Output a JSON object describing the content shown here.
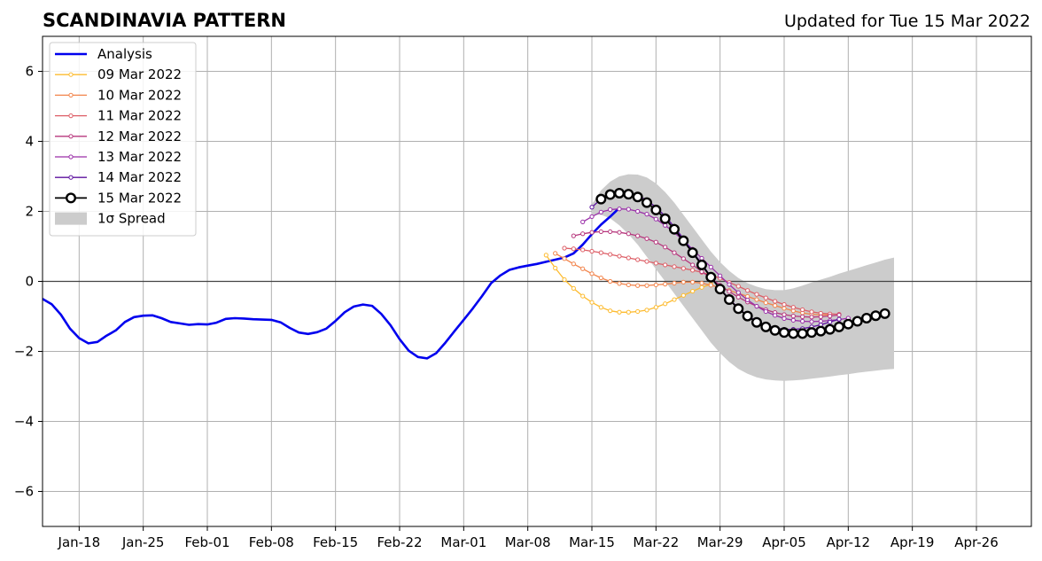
{
  "chart_data": {
    "type": "line",
    "title": "SCANDINAVIA PATTERN",
    "subtitle": "Updated for Tue 15 Mar 2022",
    "xlabel": "",
    "ylabel": "",
    "ylim": [
      -7,
      7
    ],
    "xlim": [
      "2022-01-14",
      "2022-05-02"
    ],
    "yticks": [
      -6,
      -4,
      -2,
      0,
      2,
      4,
      6
    ],
    "ytick_labels": [
      "−6",
      "−4",
      "−2",
      "0",
      "2",
      "4",
      "6"
    ],
    "xticks": [
      "2022-01-18",
      "2022-01-25",
      "2022-02-01",
      "2022-02-08",
      "2022-02-15",
      "2022-02-22",
      "2022-03-01",
      "2022-03-08",
      "2022-03-15",
      "2022-03-22",
      "2022-03-29",
      "2022-04-05",
      "2022-04-12",
      "2022-04-19",
      "2022-04-26"
    ],
    "xtick_labels": [
      "Jan-18",
      "Jan-25",
      "Feb-01",
      "Feb-08",
      "Feb-15",
      "Feb-22",
      "Mar-01",
      "Mar-08",
      "Mar-15",
      "Mar-22",
      "Mar-29",
      "Apr-05",
      "Apr-12",
      "Apr-19",
      "Apr-26"
    ],
    "grid": true,
    "legend_position": "upper-left",
    "analysis": {
      "name": "Analysis",
      "color": "#0000ee",
      "start_date": "2022-01-14",
      "values": [
        -0.5,
        -0.65,
        -0.95,
        -1.35,
        -1.62,
        -1.77,
        -1.73,
        -1.55,
        -1.4,
        -1.16,
        -1.02,
        -0.98,
        -0.97,
        -1.05,
        -1.16,
        -1.2,
        -1.24,
        -1.22,
        -1.23,
        -1.18,
        -1.07,
        -1.05,
        -1.06,
        -1.08,
        -1.09,
        -1.1,
        -1.17,
        -1.33,
        -1.46,
        -1.5,
        -1.45,
        -1.35,
        -1.13,
        -0.88,
        -0.72,
        -0.66,
        -0.7,
        -0.93,
        -1.25,
        -1.65,
        -1.98,
        -2.16,
        -2.2,
        -2.05,
        -1.75,
        -1.42,
        -1.1,
        -0.77,
        -0.42,
        -0.05,
        0.17,
        0.33,
        0.4,
        0.45,
        0.5,
        0.56,
        0.62,
        0.68,
        0.8,
        1.05,
        1.35,
        1.62,
        1.85,
        2.1
      ]
    },
    "forecasts": [
      {
        "name": "09 Mar 2022",
        "color": "#fdbb2f",
        "start_date": "2022-03-10",
        "values": [
          0.75,
          0.38,
          0.05,
          -0.2,
          -0.42,
          -0.6,
          -0.74,
          -0.84,
          -0.88,
          -0.88,
          -0.86,
          -0.82,
          -0.74,
          -0.64,
          -0.52,
          -0.4,
          -0.28,
          -0.17,
          -0.08
        ]
      },
      {
        "name": "10 Mar 2022",
        "color": "#f2844b",
        "start_date": "2022-03-11",
        "values": [
          0.8,
          0.65,
          0.5,
          0.36,
          0.22,
          0.1,
          0.0,
          -0.06,
          -0.1,
          -0.12,
          -0.12,
          -0.1,
          -0.08,
          -0.05,
          -0.02,
          -0.02,
          -0.05,
          -0.11,
          -0.18,
          -0.26,
          -0.34,
          -0.43,
          -0.52,
          -0.61,
          -0.69,
          -0.77,
          -0.84,
          -0.9,
          -0.94,
          -0.96,
          -0.96
        ]
      },
      {
        "name": "11 Mar 2022",
        "color": "#dd5e66",
        "start_date": "2022-03-12",
        "values": [
          0.95,
          0.93,
          0.9,
          0.86,
          0.82,
          0.77,
          0.72,
          0.67,
          0.62,
          0.57,
          0.52,
          0.47,
          0.42,
          0.37,
          0.32,
          0.26,
          0.18,
          0.09,
          -0.03,
          -0.14,
          -0.26,
          -0.37,
          -0.47,
          -0.57,
          -0.66,
          -0.74,
          -0.81,
          -0.87,
          -0.91,
          -0.93,
          -0.94
        ]
      },
      {
        "name": "12 Mar 2022",
        "color": "#b7377d",
        "start_date": "2022-03-13",
        "values": [
          1.3,
          1.36,
          1.4,
          1.42,
          1.42,
          1.4,
          1.36,
          1.3,
          1.22,
          1.12,
          0.98,
          0.82,
          0.65,
          0.47,
          0.28,
          0.09,
          -0.11,
          -0.29,
          -0.45,
          -0.59,
          -0.71,
          -0.81,
          -0.89,
          -0.95,
          -0.99,
          -1.01,
          -1.02,
          -1.01,
          -0.99,
          -0.96
        ]
      },
      {
        "name": "13 Mar 2022",
        "color": "#9a2fa8",
        "start_date": "2022-03-14",
        "values": [
          1.7,
          1.85,
          1.98,
          2.05,
          2.07,
          2.06,
          2.0,
          1.92,
          1.78,
          1.6,
          1.4,
          1.16,
          0.92,
          0.66,
          0.41,
          0.16,
          -0.09,
          -0.32,
          -0.53,
          -0.71,
          -0.86,
          -0.97,
          -1.06,
          -1.11,
          -1.14,
          -1.15,
          -1.14,
          -1.12,
          -1.09,
          -1.05
        ]
      },
      {
        "name": "14 Mar 2022",
        "color": "#5c109e",
        "start_date": "2022-03-15",
        "values": [
          2.12,
          2.35,
          2.5,
          2.55,
          2.53,
          2.45,
          2.32,
          2.12,
          1.86,
          1.56,
          1.22,
          0.86,
          0.5,
          0.14,
          -0.2,
          -0.5,
          -0.76,
          -0.98,
          -1.14,
          -1.26,
          -1.33,
          -1.37,
          -1.37,
          -1.35,
          -1.3,
          -1.24,
          -1.16,
          -1.08
        ]
      }
    ],
    "latest": {
      "name": "15 Mar 2022",
      "color": "#000000",
      "start_date": "2022-03-16",
      "values": [
        2.35,
        2.48,
        2.52,
        2.49,
        2.41,
        2.25,
        2.04,
        1.79,
        1.49,
        1.16,
        0.82,
        0.47,
        0.12,
        -0.22,
        -0.52,
        -0.78,
        -0.99,
        -1.17,
        -1.3,
        -1.4,
        -1.46,
        -1.49,
        -1.49,
        -1.46,
        -1.42,
        -1.37,
        -1.3,
        -1.22,
        -1.14,
        -1.05,
        -0.98,
        -0.92
      ]
    },
    "spread": {
      "name": "1σ Spread",
      "color": "#cccccc",
      "start_date": "2022-03-15",
      "upper": [
        2.2,
        2.6,
        2.85,
        3.0,
        3.06,
        3.05,
        2.97,
        2.8,
        2.55,
        2.25,
        1.9,
        1.55,
        1.2,
        0.85,
        0.55,
        0.3,
        0.1,
        -0.05,
        -0.15,
        -0.22,
        -0.25,
        -0.25,
        -0.2,
        -0.12,
        -0.03,
        0.05,
        0.13,
        0.22,
        0.3,
        0.38,
        0.46,
        0.54,
        0.62,
        0.68
      ],
      "lower": [
        1.9,
        1.9,
        1.8,
        1.6,
        1.35,
        1.05,
        0.7,
        0.35,
        0.0,
        -0.35,
        -0.7,
        -1.05,
        -1.4,
        -1.75,
        -2.05,
        -2.3,
        -2.5,
        -2.64,
        -2.74,
        -2.8,
        -2.83,
        -2.84,
        -2.83,
        -2.81,
        -2.78,
        -2.75,
        -2.72,
        -2.68,
        -2.65,
        -2.61,
        -2.58,
        -2.55,
        -2.52,
        -2.5
      ]
    }
  }
}
